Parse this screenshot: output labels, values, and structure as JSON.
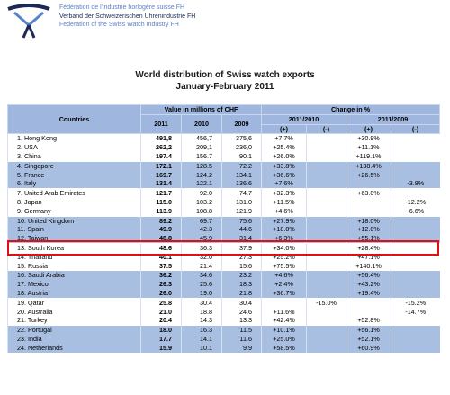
{
  "header": {
    "line1": "Fédération de l'industrie horlogère suisse FH",
    "line2": "Verband der Schweizerischen Uhrenindustrie FH",
    "line3": "Federation of the Swiss Watch Industry FH"
  },
  "title": "World distribution of Swiss watch exports",
  "subtitle": "January-February 2011",
  "table": {
    "col_countries": "Countries",
    "col_value": "Value in millions of CHF",
    "col_change": "Change in %",
    "y2011": "2011",
    "y2010": "2010",
    "y2009": "2009",
    "p1": "2011/2010",
    "p2": "2011/2009",
    "plus": "(+)",
    "minus": "(-)",
    "rows": [
      {
        "country": "1. Hong Kong",
        "v2011": "491,8",
        "v2010": "456,7",
        "v2009": "375,6",
        "a_plus": "+7.7%",
        "a_minus": "",
        "b_plus": "+30.9%",
        "b_minus": ""
      },
      {
        "country": "2. USA",
        "v2011": "262,2",
        "v2010": "209,1",
        "v2009": "236,0",
        "a_plus": "+25.4%",
        "a_minus": "",
        "b_plus": "+11.1%",
        "b_minus": ""
      },
      {
        "country": "3. China",
        "v2011": "197.4",
        "v2010": "156.7",
        "v2009": "90.1",
        "a_plus": "+26.0%",
        "a_minus": "",
        "b_plus": "+119.1%",
        "b_minus": ""
      },
      {
        "country": "4. Singapore",
        "v2011": "172.1",
        "v2010": "128.5",
        "v2009": "72.2",
        "a_plus": "+33.8%",
        "a_minus": "",
        "b_plus": "+138.4%",
        "b_minus": ""
      },
      {
        "country": "5. France",
        "v2011": "169.7",
        "v2010": "124.2",
        "v2009": "134.1",
        "a_plus": "+36.6%",
        "a_minus": "",
        "b_plus": "+26.5%",
        "b_minus": ""
      },
      {
        "country": "6. Italy",
        "v2011": "131.4",
        "v2010": "122.1",
        "v2009": "136.6",
        "a_plus": "+7.6%",
        "a_minus": "",
        "b_plus": "",
        "b_minus": "-3.8%"
      },
      {
        "country": "7. United Arab Emirates",
        "v2011": "121.7",
        "v2010": "92.0",
        "v2009": "74.7",
        "a_plus": "+32.3%",
        "a_minus": "",
        "b_plus": "+63.0%",
        "b_minus": ""
      },
      {
        "country": "8. Japan",
        "v2011": "115.0",
        "v2010": "103.2",
        "v2009": "131.0",
        "a_plus": "+11.5%",
        "a_minus": "",
        "b_plus": "",
        "b_minus": "-12.2%"
      },
      {
        "country": "9. Germany",
        "v2011": "113.9",
        "v2010": "108.8",
        "v2009": "121.9",
        "a_plus": "+4.6%",
        "a_minus": "",
        "b_plus": "",
        "b_minus": "-6.6%"
      },
      {
        "country": "10. United Kingdom",
        "v2011": "89.2",
        "v2010": "69.7",
        "v2009": "75.6",
        "a_plus": "+27.9%",
        "a_minus": "",
        "b_plus": "+18.0%",
        "b_minus": ""
      },
      {
        "country": "11. Spain",
        "v2011": "49.9",
        "v2010": "42.3",
        "v2009": "44.6",
        "a_plus": "+18.0%",
        "a_minus": "",
        "b_plus": "+12.0%",
        "b_minus": ""
      },
      {
        "country": "12. Taiwan",
        "v2011": "48.8",
        "v2010": "45.9",
        "v2009": "31.4",
        "a_plus": "+6.3%",
        "a_minus": "",
        "b_plus": "+55.1%",
        "b_minus": ""
      },
      {
        "country": "13. South Korea",
        "v2011": "48.6",
        "v2010": "36.3",
        "v2009": "37.9",
        "a_plus": "+34.0%",
        "a_minus": "",
        "b_plus": "+28.4%",
        "b_minus": ""
      },
      {
        "country": "14. Thailand",
        "v2011": "40.1",
        "v2010": "32.0",
        "v2009": "27.3",
        "a_plus": "+25.2%",
        "a_minus": "",
        "b_plus": "+47.1%",
        "b_minus": ""
      },
      {
        "country": "15. Russia",
        "v2011": "37.5",
        "v2010": "21.4",
        "v2009": "15.6",
        "a_plus": "+75.5%",
        "a_minus": "",
        "b_plus": "+140.1%",
        "b_minus": ""
      },
      {
        "country": "16. Saudi Arabia",
        "v2011": "36.2",
        "v2010": "34.6",
        "v2009": "23.2",
        "a_plus": "+4.6%",
        "a_minus": "",
        "b_plus": "+56.4%",
        "b_minus": ""
      },
      {
        "country": "17. Mexico",
        "v2011": "26.3",
        "v2010": "25.6",
        "v2009": "18.3",
        "a_plus": "+2.4%",
        "a_minus": "",
        "b_plus": "+43.2%",
        "b_minus": ""
      },
      {
        "country": "18. Austria",
        "v2011": "26.0",
        "v2010": "19.0",
        "v2009": "21.8",
        "a_plus": "+36.7%",
        "a_minus": "",
        "b_plus": "+19.4%",
        "b_minus": ""
      },
      {
        "country": "19. Qatar",
        "v2011": "25.8",
        "v2010": "30.4",
        "v2009": "30.4",
        "a_plus": "",
        "a_minus": "-15.0%",
        "b_plus": "",
        "b_minus": "-15.2%"
      },
      {
        "country": "20. Australia",
        "v2011": "21.0",
        "v2010": "18.8",
        "v2009": "24.6",
        "a_plus": "+11.6%",
        "a_minus": "",
        "b_plus": "",
        "b_minus": "-14.7%"
      },
      {
        "country": "21. Turkey",
        "v2011": "20.4",
        "v2010": "14.3",
        "v2009": "13.3",
        "a_plus": "+42.4%",
        "a_minus": "",
        "b_plus": "+52.8%",
        "b_minus": ""
      },
      {
        "country": "22. Portugal",
        "v2011": "18.0",
        "v2010": "16.3",
        "v2009": "11.5",
        "a_plus": "+10.1%",
        "a_minus": "",
        "b_plus": "+56.1%",
        "b_minus": ""
      },
      {
        "country": "23. India",
        "v2011": "17.7",
        "v2010": "14.1",
        "v2009": "11.6",
        "a_plus": "+25.0%",
        "a_minus": "",
        "b_plus": "+52.1%",
        "b_minus": ""
      },
      {
        "country": "24. Netherlands",
        "v2011": "15.9",
        "v2010": "10.1",
        "v2009": "9.9",
        "a_plus": "+58.5%",
        "a_minus": "",
        "b_plus": "+60.9%",
        "b_minus": ""
      }
    ]
  },
  "colors": {
    "header_bg": "#9fb7de",
    "shade_row": "#a9bfe2",
    "highlight": "#e01010",
    "brand": "#5b82c4"
  },
  "highlighted_row": "13. South Korea"
}
